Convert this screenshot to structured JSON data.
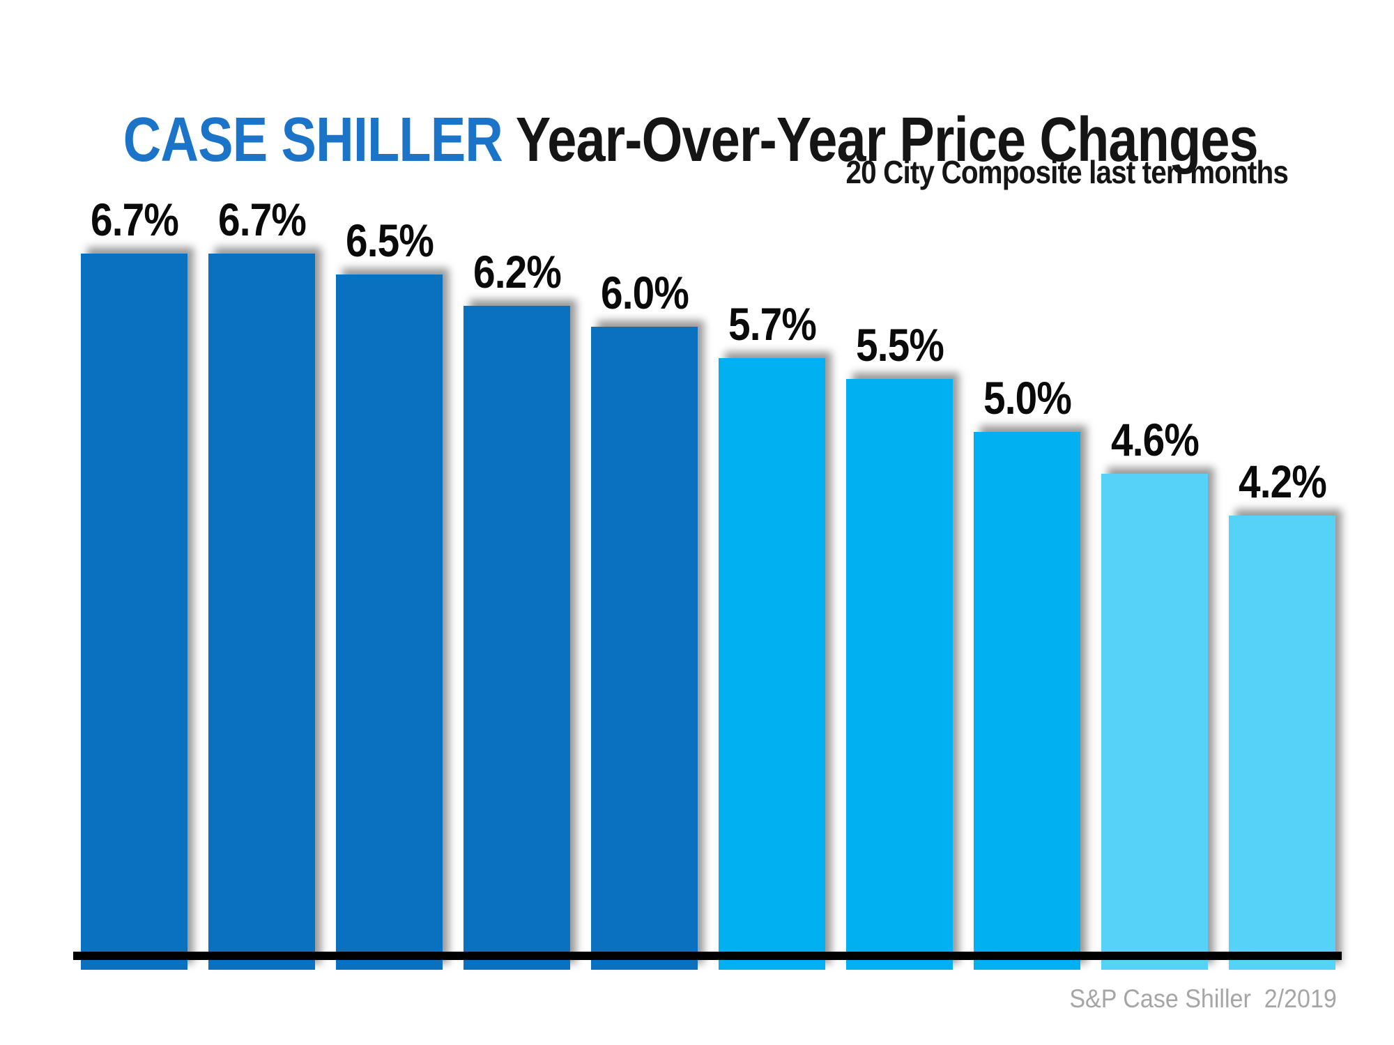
{
  "title": {
    "highlight": "CASE SHILLER",
    "rest": " Year-Over-Year Price Changes"
  },
  "subtitle": "20 City Composite last ten months",
  "source": "S&P Case Shiller  2/2019",
  "colors": {
    "title_highlight": "#1B74C8",
    "title_text": "#151515",
    "bar_dark_blue": "#0A71C0",
    "bar_cyan": "#00B0F0",
    "bar_light_blue": "#56D1F8",
    "axis_line": "#000000",
    "source_text": "#A6A6A6",
    "value_label_text": "#0A0A0A"
  },
  "chart_data": {
    "type": "bar",
    "title": "CASE SHILLER Year-Over-Year Price Changes",
    "subtitle": "20 City Composite last ten months",
    "values": [
      6.7,
      6.7,
      6.5,
      6.2,
      6.0,
      5.7,
      5.5,
      5.0,
      4.6,
      4.2
    ],
    "value_labels": [
      "6.7%",
      "6.7%",
      "6.5%",
      "6.2%",
      "6.0%",
      "5.7%",
      "5.5%",
      "5.0%",
      "4.6%",
      "4.2%"
    ],
    "bar_colors": [
      "#0A71C0",
      "#0A71C0",
      "#0A71C0",
      "#0A71C0",
      "#0A71C0",
      "#00B0F0",
      "#00B0F0",
      "#00B0F0",
      "#56D1F8",
      "#56D1F8"
    ],
    "categories": [
      "",
      "",
      "",
      "",
      "",
      "",
      "",
      "",
      "",
      ""
    ],
    "xlabel": "",
    "ylabel": "",
    "ylim": [
      0,
      7.5
    ],
    "baseline": 0,
    "gridlines": false,
    "legend": null,
    "value_labels_position": "above-bars",
    "source": "S&P Case Shiller  2/2019"
  }
}
